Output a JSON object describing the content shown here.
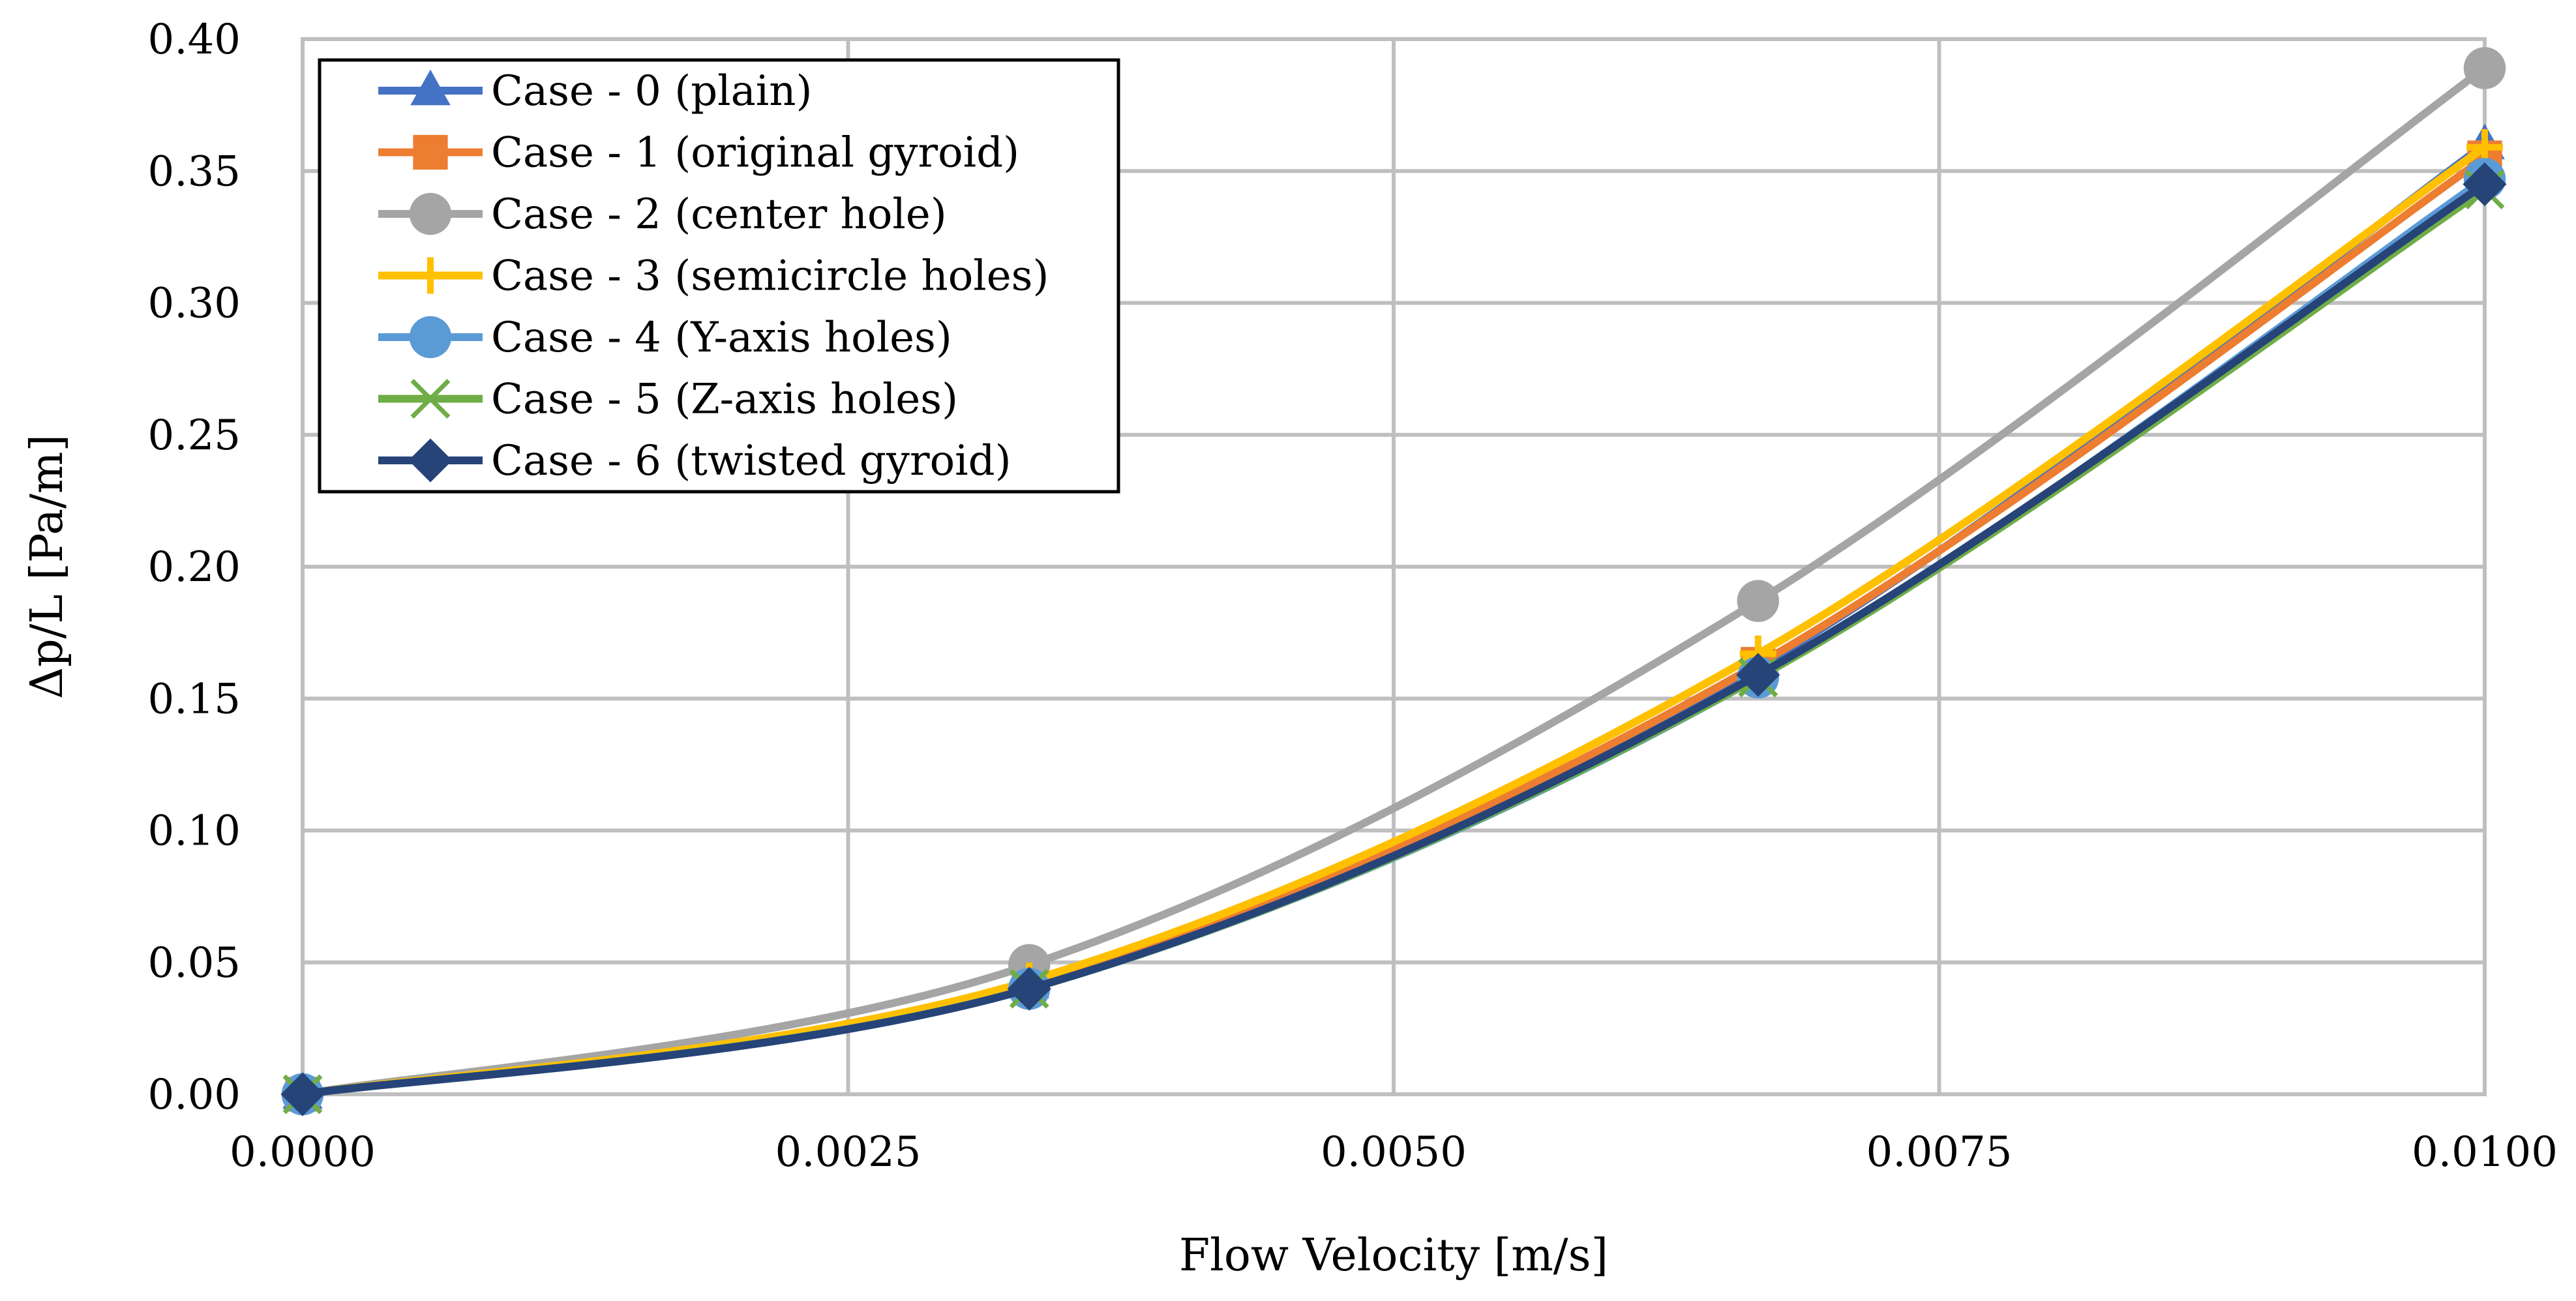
{
  "chart_data": {
    "type": "line",
    "title": "",
    "xlabel": "Flow Velocity [m/s]",
    "ylabel": "Δp/L [Pa/m]",
    "xlim": [
      0,
      0.01
    ],
    "ylim": [
      0,
      0.4
    ],
    "x_ticks": [
      0,
      0.0025,
      0.005,
      0.0075,
      0.01
    ],
    "x_tick_labels": [
      "0.0000",
      "0.0025",
      "0.0050",
      "0.0075",
      "0.0100"
    ],
    "y_ticks": [
      0,
      0.05,
      0.1,
      0.15,
      0.2,
      0.25,
      0.3,
      0.35,
      0.4
    ],
    "y_tick_labels": [
      "0.00",
      "0.05",
      "0.10",
      "0.15",
      "0.20",
      "0.25",
      "0.30",
      "0.35",
      "0.40"
    ],
    "grid": true,
    "legend_position": "top-left",
    "x": [
      0,
      0.00333,
      0.00667,
      0.01
    ],
    "series": [
      {
        "name": "Case - 0 (plain)",
        "color": "#4472C4",
        "marker": "triangle",
        "values": [
          0,
          0.042,
          0.162,
          0.36
        ]
      },
      {
        "name": "Case - 1 (original gyroid)",
        "color": "#ED7D31",
        "marker": "square",
        "values": [
          0,
          0.042,
          0.163,
          0.355
        ]
      },
      {
        "name": "Case - 2 (center hole)",
        "color": "#A5A5A5",
        "marker": "circle",
        "values": [
          0,
          0.049,
          0.187,
          0.389
        ]
      },
      {
        "name": "Case - 3 (semicircle holes)",
        "color": "#FFC000",
        "marker": "plus",
        "values": [
          0,
          0.043,
          0.167,
          0.359
        ]
      },
      {
        "name": "Case - 4 (Y-axis holes)",
        "color": "#5B9BD5",
        "marker": "circle",
        "values": [
          0,
          0.04,
          0.158,
          0.347
        ]
      },
      {
        "name": "Case - 5 (Z-axis holes)",
        "color": "#70AD47",
        "marker": "x",
        "values": [
          0,
          0.04,
          0.158,
          0.343
        ]
      },
      {
        "name": "Case - 6 (twisted gyroid)",
        "color": "#264478",
        "marker": "diamond",
        "values": [
          0,
          0.04,
          0.159,
          0.345
        ]
      }
    ]
  }
}
